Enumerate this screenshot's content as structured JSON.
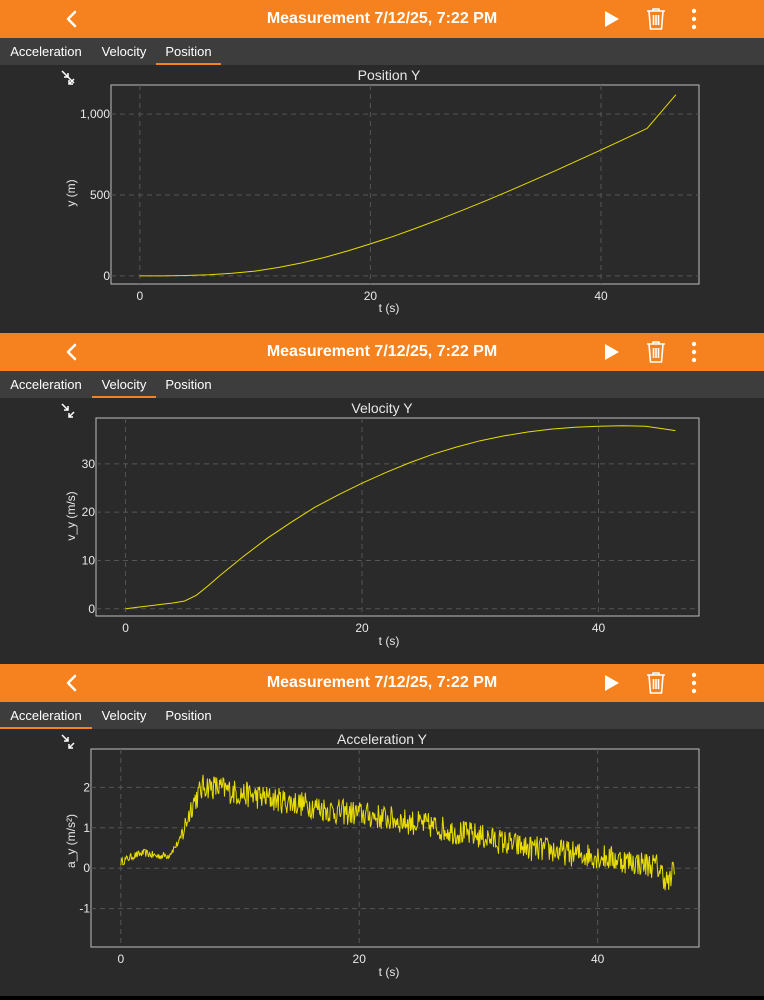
{
  "app": {
    "title": "Measurement 7/12/25, 7:22 PM",
    "accent_color": "#f5821f",
    "tab_labels": [
      "Acceleration",
      "Velocity",
      "Position"
    ]
  },
  "panels": [
    {
      "active_tab": "Position",
      "icons": [
        "chevron-left-icon",
        "play-icon",
        "trash-icon",
        "more-vertical-icon",
        "collapse-icon"
      ]
    },
    {
      "active_tab": "Velocity",
      "icons": [
        "chevron-left-icon",
        "play-icon",
        "trash-icon",
        "more-vertical-icon",
        "collapse-icon"
      ]
    },
    {
      "active_tab": "Acceleration",
      "icons": [
        "chevron-left-icon",
        "play-icon",
        "trash-icon",
        "more-vertical-icon",
        "collapse-icon"
      ]
    }
  ],
  "chart_data": [
    {
      "type": "line",
      "title": "Position Y",
      "xlabel": "t (s)",
      "ylabel": "y (m)",
      "xlim": [
        -2.5,
        48.5
      ],
      "ylim": [
        -50,
        1180
      ],
      "xticks": [
        0,
        20,
        40
      ],
      "xtick_labels": [
        "0",
        "20",
        "40"
      ],
      "yticks": [
        0,
        500,
        1000
      ],
      "ytick_labels": [
        "0",
        "500",
        "1,000"
      ],
      "grid": true,
      "line_color": "#e8dc00",
      "series": [
        {
          "x": [
            0,
            2,
            4,
            6,
            8,
            10,
            12,
            14,
            16,
            18,
            20,
            22,
            24,
            26,
            28,
            30,
            32,
            34,
            36,
            38,
            40,
            42,
            44,
            46.5
          ],
          "y": [
            0,
            0.3,
            2.5,
            7,
            16,
            30,
            52,
            80,
            114,
            154,
            198,
            245,
            296,
            350,
            406,
            464,
            524,
            586,
            649,
            714,
            779,
            845,
            912,
            1120
          ]
        }
      ]
    },
    {
      "type": "line",
      "title": "Velocity Y",
      "xlabel": "t (s)",
      "ylabel": "v_y (m/s)",
      "xlim": [
        -2.5,
        48.5
      ],
      "ylim": [
        -1.5,
        39.5
      ],
      "xticks": [
        0,
        20,
        40
      ],
      "xtick_labels": [
        "0",
        "20",
        "40"
      ],
      "yticks": [
        0,
        10,
        20,
        30
      ],
      "ytick_labels": [
        "0",
        "10",
        "20",
        "30"
      ],
      "grid": true,
      "line_color": "#e8dc00",
      "series": [
        {
          "x": [
            0,
            1,
            2,
            3,
            4,
            5,
            6,
            7,
            8,
            10,
            12,
            14,
            16,
            18,
            20,
            22,
            24,
            26,
            28,
            30,
            32,
            34,
            36,
            38,
            40,
            42,
            44,
            46.5
          ],
          "y": [
            0,
            0.3,
            0.6,
            0.9,
            1.2,
            1.6,
            2.8,
            4.8,
            6.9,
            10.9,
            14.6,
            17.9,
            21.0,
            23.6,
            26.0,
            28.2,
            30.2,
            32.0,
            33.5,
            34.8,
            35.8,
            36.6,
            37.2,
            37.6,
            37.8,
            37.9,
            37.8,
            36.9
          ]
        }
      ]
    },
    {
      "type": "line",
      "title": "Acceleration Y",
      "xlabel": "t (s)",
      "ylabel": "a_y (m/s²)",
      "xlim": [
        -2.5,
        48.5
      ],
      "ylim": [
        -1.95,
        2.95
      ],
      "xticks": [
        0,
        20,
        40
      ],
      "xtick_labels": [
        "0",
        "20",
        "40"
      ],
      "yticks": [
        -1,
        0,
        1,
        2
      ],
      "ytick_labels": [
        "-1",
        "0",
        "1",
        "2"
      ],
      "grid": true,
      "line_color": "#e8dc00",
      "series": [
        {
          "x": [
            0,
            1,
            2,
            3,
            4,
            5,
            6,
            7,
            8,
            10,
            12,
            14,
            16,
            18,
            20,
            22,
            24,
            26,
            28,
            30,
            32,
            34,
            36,
            38,
            40,
            42,
            44,
            45,
            46,
            46.5
          ],
          "y": [
            0.15,
            0.3,
            0.38,
            0.3,
            0.32,
            0.7,
            1.6,
            2.05,
            2.0,
            1.85,
            1.75,
            1.65,
            1.55,
            1.4,
            1.35,
            1.25,
            1.15,
            1.05,
            0.9,
            0.8,
            0.65,
            0.5,
            0.45,
            0.35,
            0.3,
            0.2,
            0.1,
            0.05,
            -0.4,
            0.1
          ],
          "noise_amplitude": 0.32
        }
      ]
    }
  ]
}
